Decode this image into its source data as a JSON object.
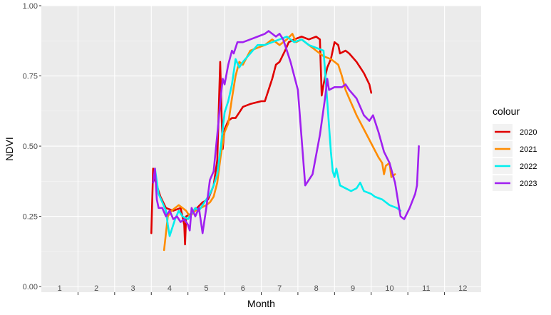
{
  "chart_data": {
    "type": "line",
    "xlabel": "Month",
    "ylabel": "NDVI",
    "xlim": [
      0.5,
      12.5
    ],
    "ylim": [
      0,
      1
    ],
    "x_ticks": [
      "1",
      "2",
      "3",
      "4",
      "5",
      "6",
      "7",
      "8",
      "9",
      "10",
      "11",
      "12"
    ],
    "y_ticks": [
      "0.00",
      "0.25",
      "0.50",
      "0.75",
      "1.00"
    ],
    "y_tick_values": [
      0,
      0.25,
      0.5,
      0.75,
      1.0
    ],
    "grid": true,
    "legend": {
      "title": "colour",
      "placement": "right"
    },
    "series": [
      {
        "name": "2020",
        "color": "#e00000",
        "points": [
          [
            3.5,
            0.19
          ],
          [
            3.55,
            0.42
          ],
          [
            3.6,
            0.38
          ],
          [
            3.75,
            0.32
          ],
          [
            3.9,
            0.28
          ],
          [
            4.1,
            0.27
          ],
          [
            4.3,
            0.28
          ],
          [
            4.4,
            0.22
          ],
          [
            4.42,
            0.15
          ],
          [
            4.45,
            0.25
          ],
          [
            4.6,
            0.26
          ],
          [
            4.75,
            0.28
          ],
          [
            4.9,
            0.3
          ],
          [
            5.05,
            0.31
          ],
          [
            5.2,
            0.36
          ],
          [
            5.3,
            0.45
          ],
          [
            5.38,
            0.8
          ],
          [
            5.42,
            0.6
          ],
          [
            5.45,
            0.49
          ],
          [
            5.5,
            0.56
          ],
          [
            5.6,
            0.59
          ],
          [
            5.7,
            0.6
          ],
          [
            5.8,
            0.6
          ],
          [
            5.9,
            0.62
          ],
          [
            6.0,
            0.64
          ],
          [
            6.2,
            0.65
          ],
          [
            6.5,
            0.66
          ],
          [
            6.6,
            0.66
          ],
          [
            6.8,
            0.74
          ],
          [
            6.9,
            0.79
          ],
          [
            7.0,
            0.8
          ],
          [
            7.15,
            0.84
          ],
          [
            7.25,
            0.87
          ],
          [
            7.4,
            0.88
          ],
          [
            7.6,
            0.89
          ],
          [
            7.8,
            0.88
          ],
          [
            8.0,
            0.89
          ],
          [
            8.1,
            0.88
          ],
          [
            8.15,
            0.68
          ],
          [
            8.2,
            0.72
          ],
          [
            8.3,
            0.78
          ],
          [
            8.4,
            0.81
          ],
          [
            8.5,
            0.87
          ],
          [
            8.6,
            0.86
          ],
          [
            8.65,
            0.83
          ],
          [
            8.8,
            0.84
          ],
          [
            8.9,
            0.83
          ],
          [
            9.1,
            0.8
          ],
          [
            9.3,
            0.76
          ],
          [
            9.45,
            0.72
          ],
          [
            9.5,
            0.69
          ]
        ]
      },
      {
        "name": "2021",
        "color": "#ff8c00",
        "points": [
          [
            3.85,
            0.13
          ],
          [
            3.95,
            0.25
          ],
          [
            4.0,
            0.26
          ],
          [
            4.05,
            0.27
          ],
          [
            4.15,
            0.28
          ],
          [
            4.25,
            0.29
          ],
          [
            4.35,
            0.28
          ],
          [
            4.45,
            0.27
          ],
          [
            4.55,
            0.25
          ],
          [
            4.7,
            0.27
          ],
          [
            4.85,
            0.28
          ],
          [
            5.0,
            0.29
          ],
          [
            5.1,
            0.3
          ],
          [
            5.2,
            0.32
          ],
          [
            5.3,
            0.37
          ],
          [
            5.4,
            0.47
          ],
          [
            5.5,
            0.55
          ],
          [
            5.6,
            0.58
          ],
          [
            5.7,
            0.67
          ],
          [
            5.8,
            0.75
          ],
          [
            5.9,
            0.8
          ],
          [
            6.0,
            0.79
          ],
          [
            6.2,
            0.84
          ],
          [
            6.4,
            0.85
          ],
          [
            6.6,
            0.86
          ],
          [
            6.8,
            0.88
          ],
          [
            7.0,
            0.86
          ],
          [
            7.2,
            0.88
          ],
          [
            7.35,
            0.9
          ],
          [
            7.45,
            0.87
          ],
          [
            7.6,
            0.88
          ],
          [
            7.8,
            0.86
          ],
          [
            7.9,
            0.85
          ],
          [
            8.0,
            0.84
          ],
          [
            8.2,
            0.82
          ],
          [
            8.4,
            0.81
          ],
          [
            8.6,
            0.79
          ],
          [
            8.7,
            0.75
          ],
          [
            8.8,
            0.7
          ],
          [
            8.9,
            0.67
          ],
          [
            9.1,
            0.61
          ],
          [
            9.3,
            0.56
          ],
          [
            9.5,
            0.51
          ],
          [
            9.7,
            0.46
          ],
          [
            9.8,
            0.44
          ],
          [
            9.85,
            0.4
          ],
          [
            9.9,
            0.43
          ],
          [
            10.0,
            0.44
          ],
          [
            10.05,
            0.39
          ],
          [
            10.15,
            0.4
          ]
        ]
      },
      {
        "name": "2022",
        "color": "#00eeee",
        "points": [
          [
            3.6,
            0.42
          ],
          [
            3.7,
            0.33
          ],
          [
            3.8,
            0.3
          ],
          [
            3.9,
            0.27
          ],
          [
            3.95,
            0.22
          ],
          [
            4.0,
            0.18
          ],
          [
            4.05,
            0.2
          ],
          [
            4.15,
            0.24
          ],
          [
            4.25,
            0.27
          ],
          [
            4.35,
            0.25
          ],
          [
            4.5,
            0.24
          ],
          [
            4.6,
            0.26
          ],
          [
            4.7,
            0.28
          ],
          [
            4.8,
            0.27
          ],
          [
            4.9,
            0.29
          ],
          [
            5.0,
            0.31
          ],
          [
            5.1,
            0.33
          ],
          [
            5.2,
            0.36
          ],
          [
            5.3,
            0.4
          ],
          [
            5.4,
            0.5
          ],
          [
            5.5,
            0.62
          ],
          [
            5.6,
            0.66
          ],
          [
            5.7,
            0.72
          ],
          [
            5.8,
            0.81
          ],
          [
            5.9,
            0.78
          ],
          [
            6.0,
            0.8
          ],
          [
            6.2,
            0.83
          ],
          [
            6.4,
            0.86
          ],
          [
            6.6,
            0.86
          ],
          [
            6.8,
            0.87
          ],
          [
            7.0,
            0.88
          ],
          [
            7.2,
            0.89
          ],
          [
            7.4,
            0.87
          ],
          [
            7.6,
            0.88
          ],
          [
            7.8,
            0.86
          ],
          [
            8.0,
            0.85
          ],
          [
            8.2,
            0.84
          ],
          [
            8.3,
            0.66
          ],
          [
            8.4,
            0.48
          ],
          [
            8.45,
            0.41
          ],
          [
            8.5,
            0.39
          ],
          [
            8.55,
            0.42
          ],
          [
            8.65,
            0.36
          ],
          [
            8.8,
            0.35
          ],
          [
            8.95,
            0.34
          ],
          [
            9.1,
            0.35
          ],
          [
            9.2,
            0.37
          ],
          [
            9.3,
            0.34
          ],
          [
            9.5,
            0.33
          ],
          [
            9.6,
            0.32
          ],
          [
            9.8,
            0.31
          ],
          [
            10.0,
            0.29
          ],
          [
            10.2,
            0.28
          ],
          [
            10.3,
            0.27
          ]
        ]
      },
      {
        "name": "2023",
        "color": "#a020f0",
        "points": [
          [
            3.55,
            0.37
          ],
          [
            3.6,
            0.42
          ],
          [
            3.65,
            0.31
          ],
          [
            3.7,
            0.28
          ],
          [
            3.8,
            0.28
          ],
          [
            3.9,
            0.25
          ],
          [
            4.0,
            0.27
          ],
          [
            4.1,
            0.24
          ],
          [
            4.2,
            0.25
          ],
          [
            4.3,
            0.23
          ],
          [
            4.4,
            0.24
          ],
          [
            4.5,
            0.22
          ],
          [
            4.55,
            0.2
          ],
          [
            4.6,
            0.28
          ],
          [
            4.7,
            0.25
          ],
          [
            4.8,
            0.28
          ],
          [
            4.9,
            0.19
          ],
          [
            5.0,
            0.28
          ],
          [
            5.1,
            0.38
          ],
          [
            5.2,
            0.41
          ],
          [
            5.3,
            0.54
          ],
          [
            5.4,
            0.68
          ],
          [
            5.45,
            0.74
          ],
          [
            5.5,
            0.72
          ],
          [
            5.6,
            0.79
          ],
          [
            5.7,
            0.84
          ],
          [
            5.75,
            0.83
          ],
          [
            5.85,
            0.87
          ],
          [
            6.0,
            0.87
          ],
          [
            6.2,
            0.88
          ],
          [
            6.4,
            0.89
          ],
          [
            6.6,
            0.9
          ],
          [
            6.7,
            0.91
          ],
          [
            6.8,
            0.9
          ],
          [
            6.9,
            0.89
          ],
          [
            7.0,
            0.9
          ],
          [
            7.1,
            0.88
          ],
          [
            7.3,
            0.8
          ],
          [
            7.5,
            0.7
          ],
          [
            7.7,
            0.36
          ],
          [
            7.9,
            0.4
          ],
          [
            8.1,
            0.54
          ],
          [
            8.25,
            0.68
          ],
          [
            8.3,
            0.74
          ],
          [
            8.35,
            0.7
          ],
          [
            8.5,
            0.71
          ],
          [
            8.7,
            0.71
          ],
          [
            8.8,
            0.72
          ],
          [
            8.9,
            0.7
          ],
          [
            9.1,
            0.67
          ],
          [
            9.3,
            0.61
          ],
          [
            9.45,
            0.59
          ],
          [
            9.55,
            0.61
          ],
          [
            9.7,
            0.55
          ],
          [
            9.85,
            0.48
          ],
          [
            10.0,
            0.44
          ],
          [
            10.15,
            0.37
          ],
          [
            10.3,
            0.25
          ],
          [
            10.4,
            0.24
          ],
          [
            10.55,
            0.28
          ],
          [
            10.7,
            0.33
          ],
          [
            10.75,
            0.36
          ],
          [
            10.8,
            0.5
          ]
        ]
      }
    ]
  }
}
